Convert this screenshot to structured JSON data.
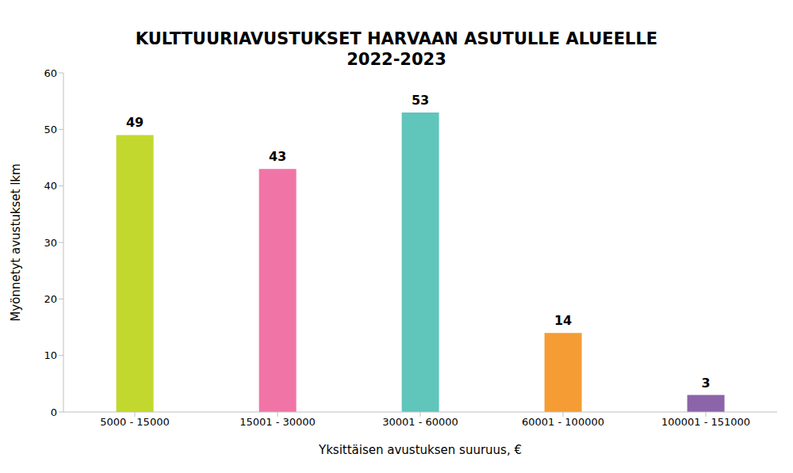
{
  "chart_data": {
    "type": "bar",
    "title": "KULTTUURIAVUSTUKSET HARVAAN ASUTULLE ALUEELLE",
    "subtitle": "2022-2023",
    "x_label": "Yksittäisen avustuksen suuruus, €",
    "y_label": "Myönnetyt avustukset lkm",
    "categories": [
      "5000 - 15000",
      "15001 - 30000",
      "30001 - 60000",
      "60001 - 100000",
      "100001 - 151000"
    ],
    "values": [
      49,
      43,
      53,
      14,
      3
    ],
    "colors": [
      "#c2d82e",
      "#f075a6",
      "#60c5bb",
      "#f59c34",
      "#8c64aa"
    ],
    "ylim": [
      0,
      60
    ],
    "yticks": [
      0,
      10,
      20,
      30,
      40,
      50,
      60
    ],
    "grid": false,
    "data_labels": true
  }
}
